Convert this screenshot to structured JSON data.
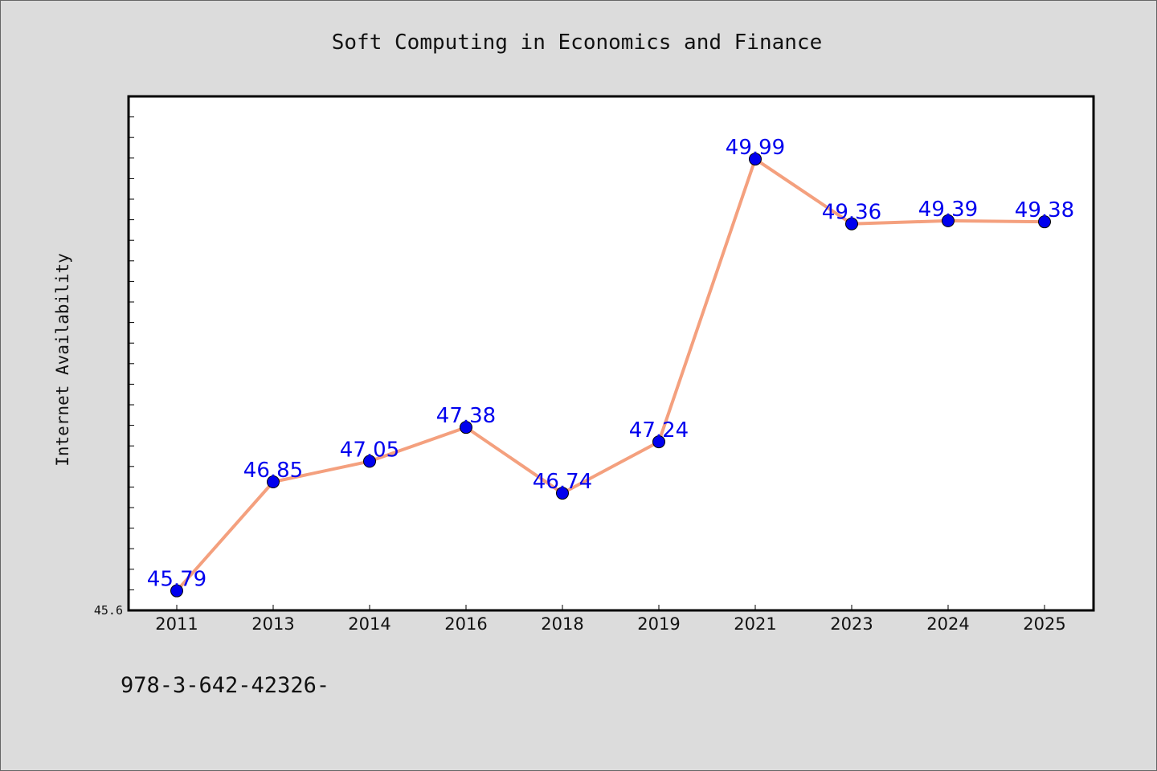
{
  "chart_data": {
    "type": "line",
    "title": "Soft Computing in Economics and Finance",
    "ylabel": "Internet Availability",
    "xlabel": "",
    "categories": [
      "2011",
      "2013",
      "2014",
      "2016",
      "2018",
      "2019",
      "2021",
      "2023",
      "2024",
      "2025"
    ],
    "values": [
      45.79,
      46.85,
      47.05,
      47.38,
      46.74,
      47.24,
      49.99,
      49.36,
      49.39,
      49.38
    ],
    "value_labels": [
      "45.79",
      "46.85",
      "47.05",
      "47.38",
      "46.74",
      "47.24",
      "49.99",
      "49.36",
      "49.39",
      "49.38"
    ],
    "ylim": [
      45.6,
      50.6
    ],
    "ytick_labels": [
      "45.6"
    ],
    "grid": false,
    "line_color": "#f4a07e",
    "marker_color": "#0000ee",
    "label_color": "#0000ee"
  },
  "footnote": "978-3-642-42326-"
}
